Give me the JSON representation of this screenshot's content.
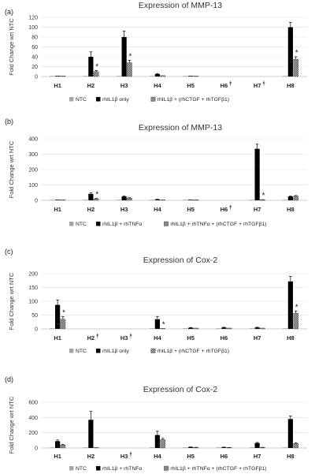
{
  "chart_data": [
    {
      "type": "bar",
      "panel": "(a)",
      "title": "Expression of MMP-13",
      "ylabel": "Fold Change wrt NTC",
      "ylim": [
        0,
        120
      ],
      "yticks": [
        0,
        20,
        40,
        60,
        80,
        100,
        120
      ],
      "categories": [
        "H1",
        "H2",
        "H3",
        "H4",
        "H5",
        "H6",
        "H7",
        "H8"
      ],
      "category_marks": [
        "",
        "",
        "",
        "",
        "",
        "ǂ",
        "ǂ",
        ""
      ],
      "series": [
        {
          "name": "NTC",
          "style": "gray",
          "values": [
            1,
            1,
            1,
            1,
            1,
            null,
            null,
            1
          ],
          "errors": [
            0,
            0,
            0,
            0,
            0,
            0,
            0,
            0
          ]
        },
        {
          "name": "rhIL1β only",
          "style": "black",
          "values": [
            1,
            40,
            80,
            5,
            1,
            null,
            null,
            100
          ],
          "errors": [
            0,
            10,
            12,
            1,
            0,
            0,
            0,
            10
          ]
        },
        {
          "name": "rhIL1β + (rhCTGF + rhTGFβ1)",
          "style": "check",
          "values": [
            1,
            10,
            28,
            2,
            1,
            null,
            null,
            35
          ],
          "errors": [
            0,
            2,
            5,
            0,
            0,
            0,
            0,
            5
          ]
        }
      ],
      "significance": [
        "",
        "*",
        "*",
        "",
        "",
        "",
        "",
        "*"
      ]
    },
    {
      "type": "bar",
      "panel": "(b)",
      "title": "Expression of MMP-13",
      "ylabel": "Fold Change wrt NTC",
      "ylim": [
        0,
        400
      ],
      "yticks": [
        0,
        100,
        200,
        300,
        400
      ],
      "categories": [
        "H1",
        "H2",
        "H3",
        "H4",
        "H5",
        "H6",
        "H7",
        "H8"
      ],
      "category_marks": [
        "",
        "",
        "",
        "",
        "",
        "ǂ",
        "",
        ""
      ],
      "series": [
        {
          "name": "NTC",
          "style": "gray",
          "values": [
            1,
            1,
            1,
            1,
            1,
            null,
            1,
            1
          ],
          "errors": [
            0,
            0,
            0,
            0,
            0,
            0,
            0,
            0
          ]
        },
        {
          "name": "rhIL1β + rhTNFα",
          "style": "black",
          "values": [
            2,
            42,
            25,
            6,
            3,
            null,
            335,
            25
          ],
          "errors": [
            0,
            6,
            3,
            1,
            0,
            0,
            30,
            3
          ]
        },
        {
          "name": "rhIL1β + rhTNFα + (rhCTGF + rhTGFβ1)",
          "style": "check",
          "values": [
            1,
            10,
            15,
            3,
            2,
            null,
            3,
            28
          ],
          "errors": [
            0,
            2,
            2,
            0,
            0,
            0,
            1,
            3
          ]
        }
      ],
      "significance": [
        "",
        "*",
        "",
        "",
        "",
        "",
        "*",
        ""
      ]
    },
    {
      "type": "bar",
      "panel": "(c)",
      "title": "Expression of Cox-2",
      "ylabel": "Fold Change wrt NTC",
      "ylim": [
        0,
        200
      ],
      "yticks": [
        0,
        50,
        100,
        150,
        200
      ],
      "categories": [
        "H1",
        "H2",
        "H3",
        "H4",
        "H5",
        "H6",
        "H7",
        "H8"
      ],
      "category_marks": [
        "",
        "ǂ",
        "ǂ",
        "",
        "",
        "",
        "",
        ""
      ],
      "series": [
        {
          "name": "NTC",
          "style": "gray",
          "values": [
            1,
            null,
            null,
            1,
            1,
            1,
            1,
            1
          ],
          "errors": [
            0,
            0,
            0,
            0,
            0,
            0,
            0,
            0
          ]
        },
        {
          "name": "rhIL1β only",
          "style": "black",
          "values": [
            87,
            null,
            null,
            35,
            4,
            5,
            5,
            172
          ],
          "errors": [
            18,
            0,
            0,
            10,
            1,
            1,
            1,
            18
          ]
        },
        {
          "name": "rhIL1β + (rhCTGF + rhTGFβ1)",
          "style": "check",
          "values": [
            35,
            null,
            null,
            2,
            3,
            3,
            3,
            57
          ],
          "errors": [
            10,
            0,
            0,
            0,
            0,
            0,
            0,
            8
          ]
        }
      ],
      "significance": [
        "*",
        "",
        "",
        "*",
        "",
        "",
        "",
        "*"
      ]
    },
    {
      "type": "bar",
      "panel": "(d)",
      "title": "Expression of Cox-2",
      "ylabel": "Fold Change wrt NTC",
      "ylim": [
        0,
        600
      ],
      "yticks": [
        0,
        200,
        400,
        600
      ],
      "categories": [
        "H1",
        "H2",
        "H3",
        "H4",
        "H5",
        "H6",
        "H7",
        "H8"
      ],
      "category_marks": [
        "",
        "",
        "ǂ",
        "",
        "",
        "",
        "",
        ""
      ],
      "series": [
        {
          "name": "NTC",
          "style": "gray",
          "values": [
            1,
            1,
            null,
            1,
            1,
            1,
            1,
            1
          ],
          "errors": [
            0,
            0,
            0,
            0,
            0,
            0,
            0,
            0
          ]
        },
        {
          "name": "rhIL1β + rhTNFα",
          "style": "black",
          "values": [
            90,
            370,
            null,
            170,
            12,
            10,
            65,
            380
          ],
          "errors": [
            15,
            110,
            0,
            50,
            2,
            2,
            8,
            40
          ]
        },
        {
          "name": "rhIL1β + rhTNFα + (rhCTGF + rhTGFβ1)",
          "style": "check",
          "values": [
            40,
            8,
            null,
            110,
            8,
            5,
            8,
            60
          ],
          "errors": [
            8,
            0,
            0,
            15,
            1,
            1,
            1,
            8
          ]
        }
      ],
      "significance": [
        "",
        "",
        "",
        "",
        "",
        "",
        "",
        ""
      ]
    }
  ]
}
